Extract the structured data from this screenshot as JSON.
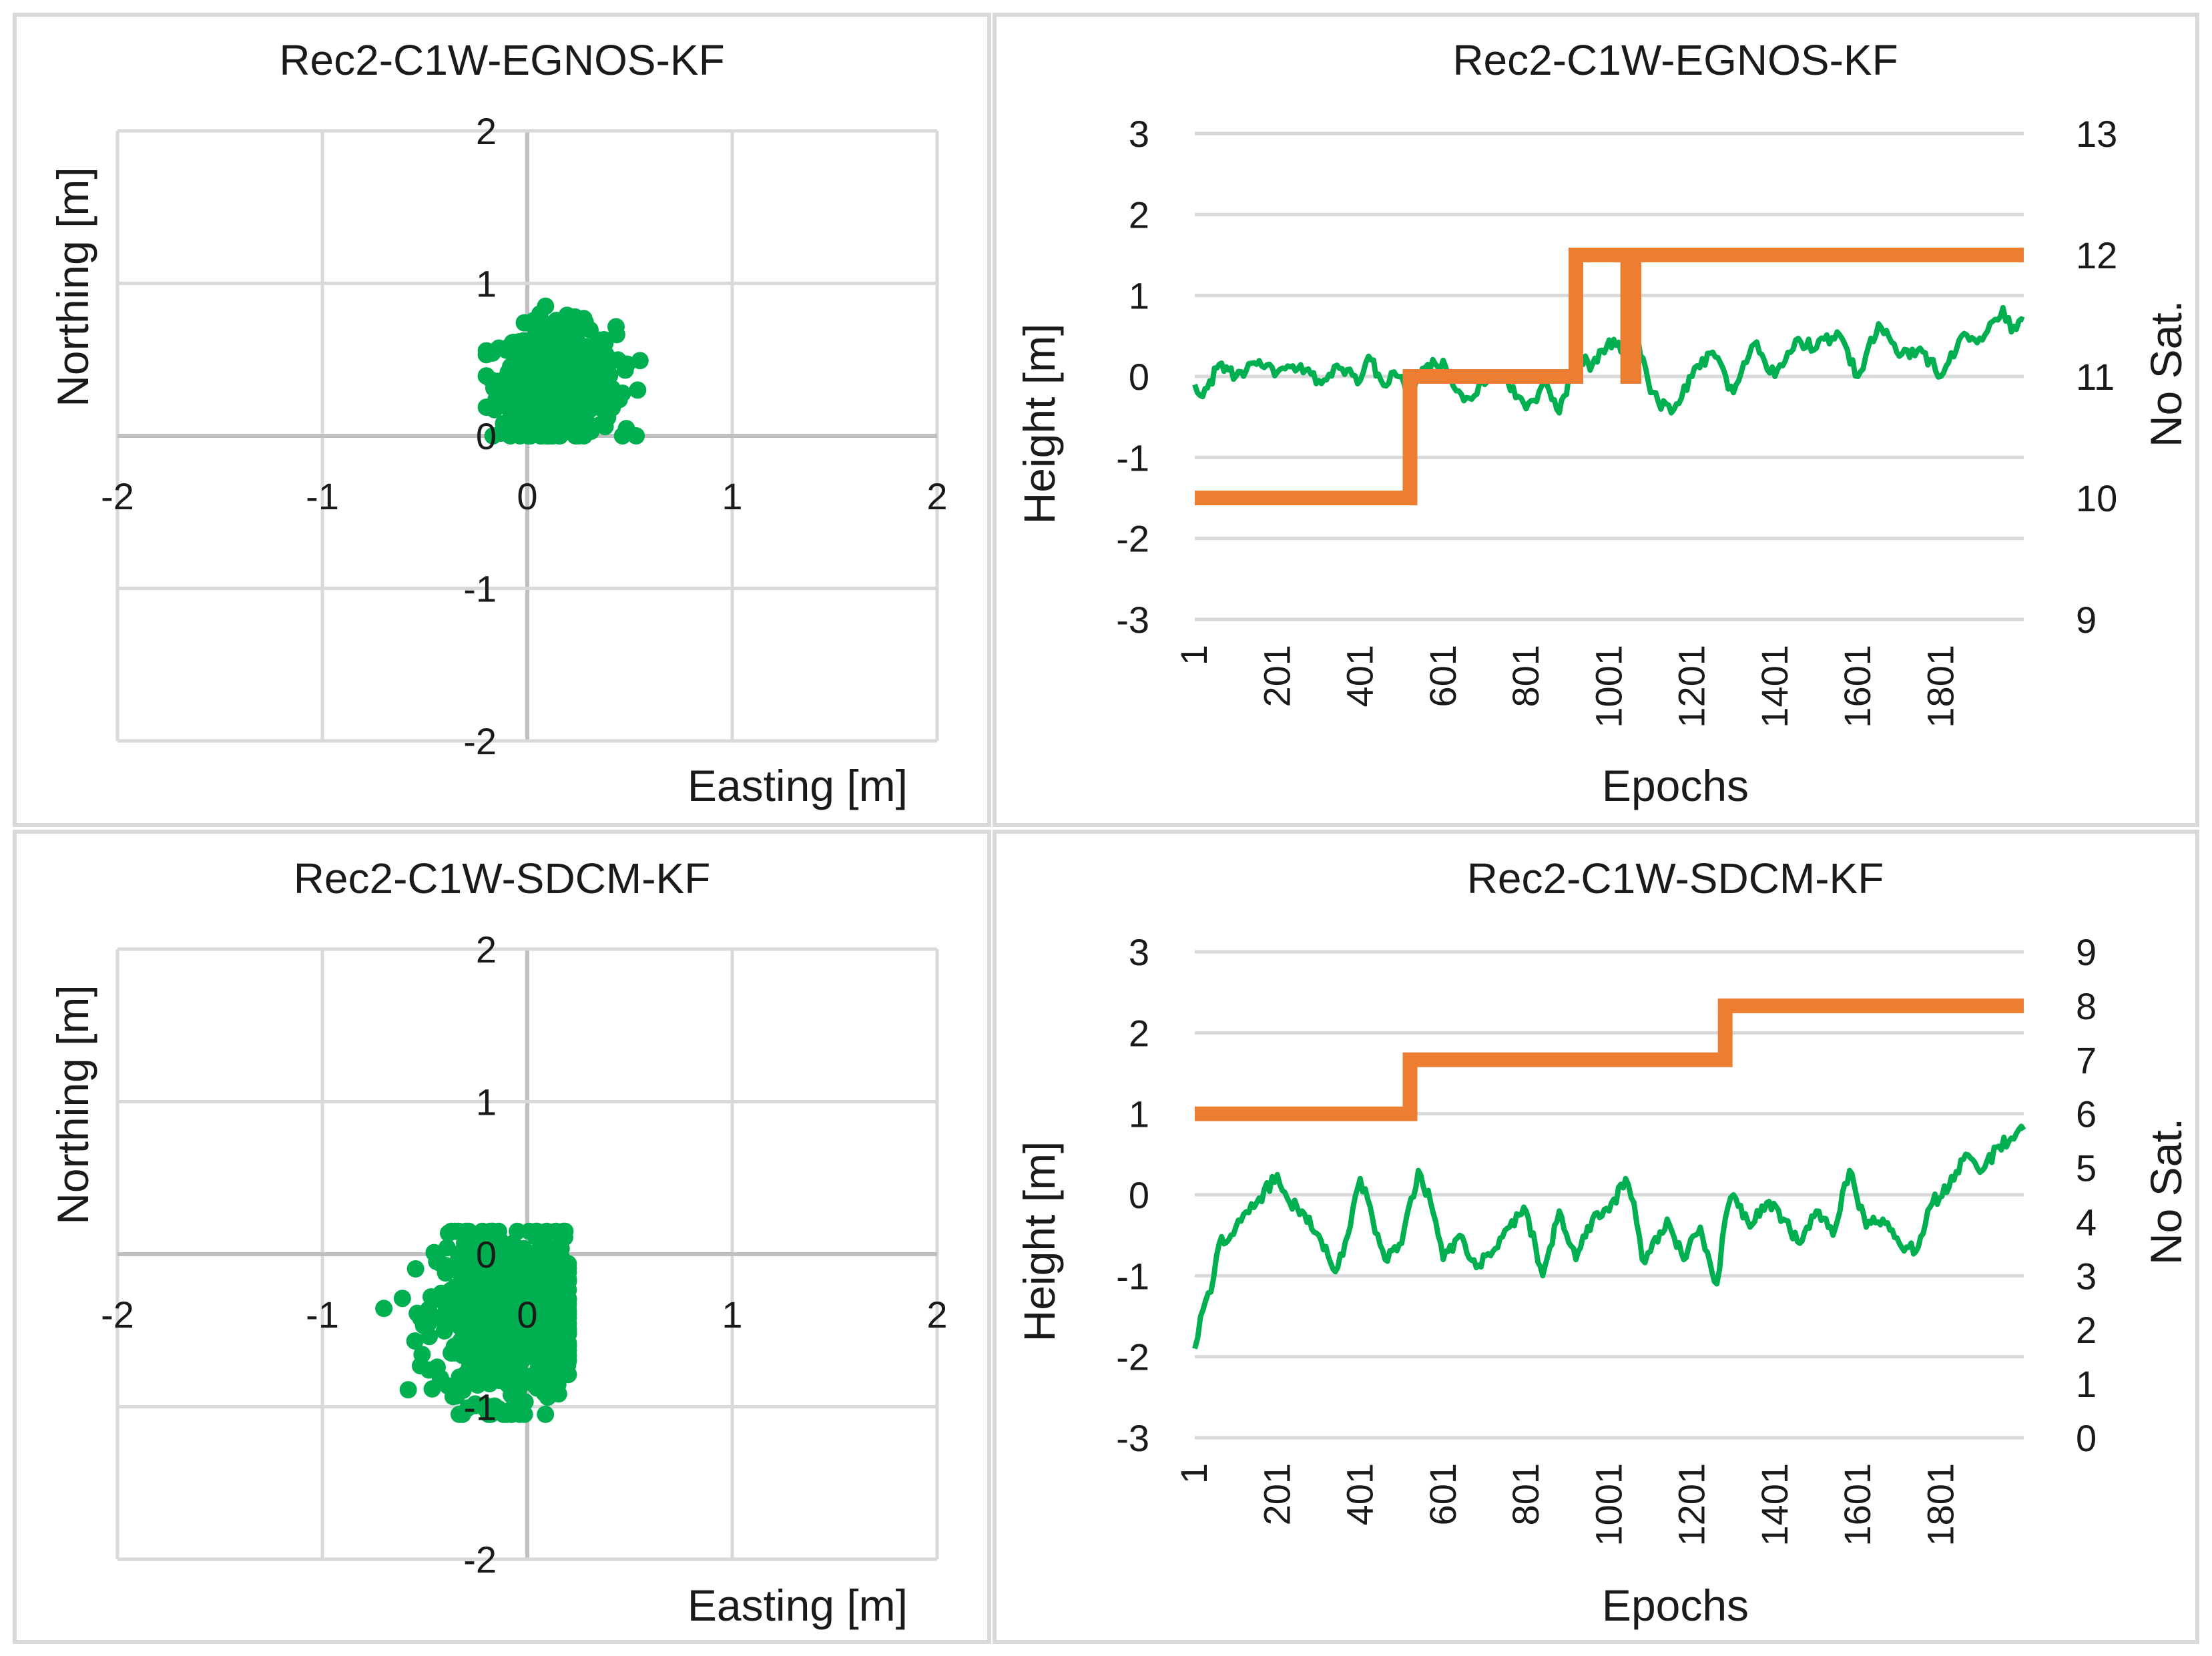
{
  "colors": {
    "green": "#00b050",
    "orange": "#ed7d31",
    "grid": "#d9d9d9",
    "axis": "#bfbfbf",
    "frame": "#d9d9d9"
  },
  "chart_data": [
    {
      "id": "scatter-egnos",
      "type": "scatter",
      "title": "Rec2-C1W-EGNOS-KF",
      "xlabel": "Easting [m]",
      "ylabel": "Northing [m]",
      "xlim": [
        -2,
        2
      ],
      "ylim": [
        -2,
        2
      ],
      "xticks": [
        "-2",
        "-1",
        "0",
        "1",
        "2"
      ],
      "yticks": [
        "-2",
        "-1",
        "0",
        "1",
        "2"
      ],
      "cluster": {
        "center": [
          0.15,
          0.35
        ],
        "spread": [
          0.14,
          0.18
        ],
        "x_range": [
          -0.2,
          0.55
        ],
        "y_range": [
          0.0,
          0.85
        ],
        "count": 700
      },
      "grid": true
    },
    {
      "id": "line-egnos",
      "type": "line",
      "title": "Rec2-C1W-EGNOS-KF",
      "xlabel": "Epochs",
      "ylabel": "Height [m]",
      "y2label": "No Sat.",
      "xlim": [
        1,
        2000
      ],
      "ylim": [
        -3,
        3
      ],
      "y2lim": [
        9,
        13
      ],
      "xticks": [
        "1",
        "201",
        "401",
        "601",
        "801",
        "1001",
        "1201",
        "1401",
        "1601",
        "1801"
      ],
      "yticks": [
        "-3",
        "-2",
        "-1",
        "0",
        "1",
        "2",
        "3"
      ],
      "y2ticks": [
        "9",
        "10",
        "11",
        "12",
        "13"
      ],
      "series": [
        {
          "name": "Height",
          "axis": "left",
          "color": "#00b050",
          "x": [
            1,
            20,
            60,
            100,
            150,
            200,
            250,
            300,
            350,
            400,
            420,
            450,
            500,
            520,
            550,
            600,
            650,
            700,
            750,
            800,
            850,
            880,
            920,
            960,
            1000,
            1040,
            1070,
            1100,
            1150,
            1200,
            1250,
            1300,
            1350,
            1400,
            1450,
            1500,
            1550,
            1600,
            1650,
            1700,
            1750,
            1800,
            1850,
            1900,
            1950,
            1970,
            2000
          ],
          "values": [
            -0.1,
            -0.25,
            0.15,
            0.0,
            0.15,
            0.05,
            0.1,
            -0.05,
            0.1,
            -0.05,
            0.25,
            -0.05,
            0.0,
            -0.35,
            0.1,
            0.2,
            -0.3,
            -0.1,
            0.0,
            -0.4,
            -0.1,
            -0.45,
            0.2,
            0.15,
            0.45,
            0.3,
            0.45,
            -0.2,
            -0.45,
            0.0,
            0.3,
            -0.2,
            0.4,
            0.0,
            0.45,
            0.35,
            0.55,
            0.0,
            0.65,
            0.25,
            0.35,
            0.0,
            0.5,
            0.45,
            0.85,
            0.55,
            0.7
          ]
        },
        {
          "name": "No Sat.",
          "axis": "right",
          "color": "#ed7d31",
          "x": [
            1,
            520,
            520,
            920,
            920,
            1045,
            1045,
            1060,
            1060,
            1075,
            1075,
            2000
          ],
          "values": [
            10,
            10,
            11,
            11,
            12,
            12,
            11,
            11,
            12,
            12,
            12,
            12
          ]
        }
      ],
      "grid": true
    },
    {
      "id": "scatter-sdcm",
      "type": "scatter",
      "title": "Rec2-C1W-SDCM-KF",
      "xlabel": "Easting [m]",
      "ylabel": "Northing [m]",
      "xlim": [
        -2,
        2
      ],
      "ylim": [
        -2,
        2
      ],
      "xticks": [
        "-2",
        "-1",
        "0",
        "1",
        "2"
      ],
      "yticks": [
        "-2",
        "-1",
        "0",
        "1",
        "2"
      ],
      "cluster": {
        "center": [
          -0.1,
          -0.4
        ],
        "spread": [
          0.17,
          0.28
        ],
        "x_range": [
          -0.7,
          0.2
        ],
        "y_range": [
          -1.05,
          0.15
        ],
        "count": 700
      },
      "grid": true
    },
    {
      "id": "line-sdcm",
      "type": "line",
      "title": "Rec2-C1W-SDCM-KF",
      "xlabel": "Epochs",
      "ylabel": "Height [m]",
      "y2label": "No Sat.",
      "xlim": [
        1,
        2000
      ],
      "ylim": [
        -3,
        3
      ],
      "y2lim": [
        0,
        9
      ],
      "xticks": [
        "1",
        "201",
        "401",
        "601",
        "801",
        "1001",
        "1201",
        "1401",
        "1601",
        "1801"
      ],
      "yticks": [
        "-3",
        "-2",
        "-1",
        "0",
        "1",
        "2",
        "3"
      ],
      "y2ticks": [
        "0",
        "1",
        "2",
        "3",
        "4",
        "5",
        "6",
        "7",
        "8",
        "9"
      ],
      "series": [
        {
          "name": "Height",
          "axis": "left",
          "color": "#00b050",
          "x": [
            1,
            15,
            40,
            60,
            100,
            150,
            200,
            230,
            260,
            300,
            340,
            370,
            400,
            430,
            460,
            500,
            540,
            570,
            600,
            640,
            680,
            720,
            760,
            800,
            840,
            880,
            920,
            960,
            1000,
            1040,
            1060,
            1080,
            1100,
            1140,
            1180,
            1220,
            1260,
            1280,
            1300,
            1340,
            1380,
            1420,
            1460,
            1500,
            1540,
            1580,
            1620,
            1660,
            1700,
            1740,
            1780,
            1820,
            1860,
            1900,
            1940,
            1970,
            2000
          ],
          "values": [
            -1.9,
            -1.5,
            -1.2,
            -0.6,
            -0.4,
            -0.1,
            0.25,
            -0.1,
            -0.2,
            -0.5,
            -0.95,
            -0.5,
            0.2,
            -0.3,
            -0.8,
            -0.6,
            0.3,
            -0.1,
            -0.8,
            -0.5,
            -0.9,
            -0.7,
            -0.4,
            -0.2,
            -1.0,
            -0.2,
            -0.8,
            -0.3,
            -0.2,
            0.2,
            -0.1,
            -0.8,
            -0.7,
            -0.3,
            -0.8,
            -0.4,
            -1.1,
            -0.3,
            0.0,
            -0.4,
            -0.1,
            -0.3,
            -0.6,
            -0.2,
            -0.5,
            0.3,
            -0.4,
            -0.3,
            -0.6,
            -0.7,
            -0.1,
            0.1,
            0.5,
            0.3,
            0.6,
            0.7,
            0.8
          ]
        },
        {
          "name": "No Sat.",
          "axis": "right",
          "color": "#ed7d31",
          "x": [
            1,
            520,
            520,
            1280,
            1280,
            2000
          ],
          "values": [
            6,
            6,
            7,
            7,
            8,
            8
          ]
        }
      ],
      "grid": true
    }
  ]
}
